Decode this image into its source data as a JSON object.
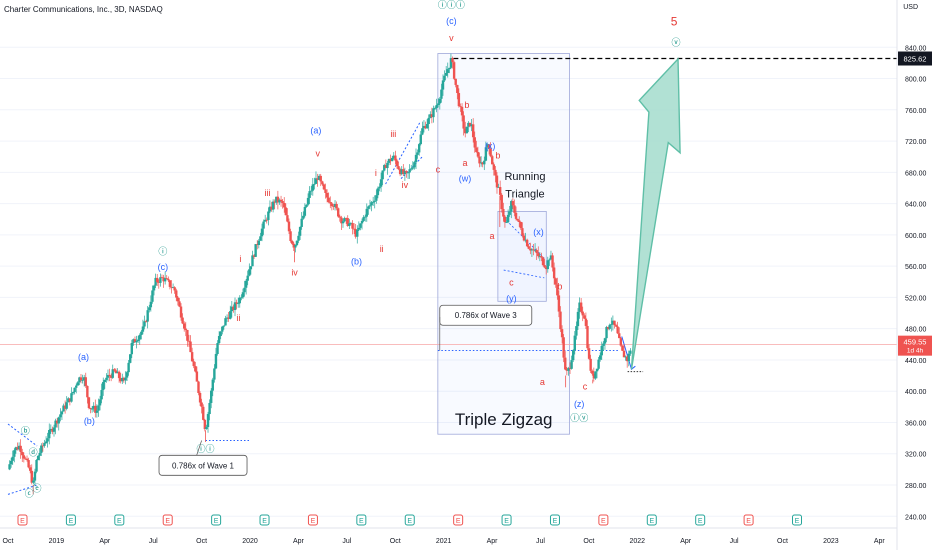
{
  "header": {
    "title": "Charter Communications, Inc., 3D, NASDAQ",
    "currency": "USD"
  },
  "colors": {
    "up": "#26a69a",
    "down": "#ef5350",
    "wave_blue": "#2962ff",
    "wave_red": "#e53935",
    "wave_teal": "#00897b",
    "target_arrow": "#a3dccd",
    "price_line": "#f7a6a6",
    "axis_text": "#131722"
  },
  "chart_data": {
    "type": "candlestick",
    "y_axis": {
      "ticks": [
        240,
        280,
        320,
        360,
        400,
        440,
        480,
        520,
        560,
        600,
        640,
        680,
        720,
        760,
        800,
        840
      ],
      "range": [
        225,
        880
      ]
    },
    "x_axis": {
      "ticks": [
        "Oct",
        "2019",
        "Apr",
        "Jul",
        "Oct",
        "2020",
        "Apr",
        "Jul",
        "Oct",
        "2021",
        "Apr",
        "Jul",
        "Oct",
        "2022",
        "Apr",
        "Jul",
        "Oct",
        "2023",
        "Apr"
      ]
    },
    "price_labels": {
      "high": "825.62",
      "last": "459.55",
      "last_sub": "1d 4h"
    },
    "price_path": [
      [
        0,
        300
      ],
      [
        0.03,
        325
      ],
      [
        0.06,
        330
      ],
      [
        0.09,
        312
      ],
      [
        0.11,
        300
      ],
      [
        0.13,
        280
      ],
      [
        0.15,
        315
      ],
      [
        0.2,
        340
      ],
      [
        0.28,
        375
      ],
      [
        0.33,
        395
      ],
      [
        0.36,
        415
      ],
      [
        0.39,
        420
      ],
      [
        0.42,
        380
      ],
      [
        0.46,
        375
      ],
      [
        0.5,
        415
      ],
      [
        0.55,
        425
      ],
      [
        0.6,
        410
      ],
      [
        0.64,
        460
      ],
      [
        0.7,
        480
      ],
      [
        0.76,
        540
      ],
      [
        0.8,
        545
      ],
      [
        0.86,
        530
      ],
      [
        0.92,
        475
      ],
      [
        0.96,
        430
      ],
      [
        1.0,
        380
      ],
      [
        1.02,
        350
      ],
      [
        1.05,
        400
      ],
      [
        1.08,
        460
      ],
      [
        1.12,
        490
      ],
      [
        1.2,
        520
      ],
      [
        1.25,
        560
      ],
      [
        1.3,
        600
      ],
      [
        1.34,
        625
      ],
      [
        1.38,
        645
      ],
      [
        1.42,
        640
      ],
      [
        1.46,
        595
      ],
      [
        1.48,
        585
      ],
      [
        1.52,
        620
      ],
      [
        1.56,
        655
      ],
      [
        1.6,
        675
      ],
      [
        1.64,
        650
      ],
      [
        1.68,
        640
      ],
      [
        1.72,
        620
      ],
      [
        1.76,
        615
      ],
      [
        1.8,
        600
      ],
      [
        1.85,
        630
      ],
      [
        1.9,
        650
      ],
      [
        1.95,
        690
      ],
      [
        1.99,
        700
      ],
      [
        2.03,
        680
      ],
      [
        2.06,
        675
      ],
      [
        2.1,
        695
      ],
      [
        2.14,
        735
      ],
      [
        2.18,
        750
      ],
      [
        2.22,
        770
      ],
      [
        2.26,
        805
      ],
      [
        2.29,
        825
      ],
      [
        2.32,
        780
      ],
      [
        2.36,
        730
      ],
      [
        2.39,
        745
      ],
      [
        2.42,
        700
      ],
      [
        2.45,
        690
      ],
      [
        2.48,
        720
      ],
      [
        2.51,
        680
      ],
      [
        2.54,
        650
      ],
      [
        2.57,
        610
      ],
      [
        2.6,
        640
      ],
      [
        2.63,
        620
      ],
      [
        2.66,
        600
      ],
      [
        2.69,
        585
      ],
      [
        2.72,
        578
      ],
      [
        2.75,
        570
      ],
      [
        2.78,
        560
      ],
      [
        2.8,
        575
      ],
      [
        2.83,
        535
      ],
      [
        2.86,
        470
      ],
      [
        2.88,
        420
      ],
      [
        2.9,
        430
      ],
      [
        2.93,
        470
      ],
      [
        2.95,
        510
      ],
      [
        2.98,
        495
      ],
      [
        3.0,
        440
      ],
      [
        3.02,
        415
      ],
      [
        3.05,
        440
      ],
      [
        3.08,
        470
      ],
      [
        3.11,
        490
      ],
      [
        3.14,
        480
      ],
      [
        3.17,
        450
      ],
      [
        3.2,
        440
      ],
      [
        3.22,
        459.55
      ]
    ],
    "extra_lows": [
      [
        0.13,
        268
      ],
      [
        1.02,
        335
      ],
      [
        2.88,
        405
      ],
      [
        3.02,
        410
      ],
      [
        1.48,
        565
      ],
      [
        2.54,
        610
      ]
    ],
    "wave_labels": [
      {
        "text": "ⓑ",
        "x": 0.09,
        "price": 345,
        "color": "teal"
      },
      {
        "text": "ⓓ",
        "x": 0.13,
        "price": 318,
        "color": "teal"
      },
      {
        "text": "ⓒ",
        "x": 0.11,
        "price": 265,
        "color": "teal"
      },
      {
        "text": "ⓔ",
        "x": 0.15,
        "price": 272,
        "color": "teal"
      },
      {
        "text": "(a)",
        "x": 0.39,
        "price": 440,
        "color": "blue"
      },
      {
        "text": "(b)",
        "x": 0.42,
        "price": 358,
        "color": "blue"
      },
      {
        "text": "ⓘ",
        "x": 0.8,
        "price": 575,
        "color": "teal"
      },
      {
        "text": "(c)",
        "x": 0.8,
        "price": 555,
        "color": "blue"
      },
      {
        "text": "ⓘⓘ",
        "x": 1.02,
        "price": 322,
        "color": "teal"
      },
      {
        "text": "i",
        "x": 1.2,
        "price": 565,
        "color": "red"
      },
      {
        "text": "ii",
        "x": 1.19,
        "price": 490,
        "color": "red"
      },
      {
        "text": "iii",
        "x": 1.34,
        "price": 650,
        "color": "red"
      },
      {
        "text": "iv",
        "x": 1.48,
        "price": 548,
        "color": "red"
      },
      {
        "text": "v",
        "x": 1.6,
        "price": 700,
        "color": "red"
      },
      {
        "text": "(a)",
        "x": 1.59,
        "price": 730,
        "color": "blue"
      },
      {
        "text": "(b)",
        "x": 1.8,
        "price": 562,
        "color": "blue"
      },
      {
        "text": "i",
        "x": 1.9,
        "price": 675,
        "color": "red"
      },
      {
        "text": "ii",
        "x": 1.93,
        "price": 578,
        "color": "red"
      },
      {
        "text": "iii",
        "x": 1.99,
        "price": 725,
        "color": "red"
      },
      {
        "text": "iv",
        "x": 2.05,
        "price": 660,
        "color": "red"
      },
      {
        "text": "ⓘⓘⓘ",
        "x": 2.29,
        "price": 890,
        "color": "teal"
      },
      {
        "text": "(c)",
        "x": 2.29,
        "price": 870,
        "color": "blue"
      },
      {
        "text": "v",
        "x": 2.29,
        "price": 848,
        "color": "red"
      },
      {
        "text": "c",
        "x": 2.22,
        "price": 680,
        "color": "red"
      },
      {
        "text": "b",
        "x": 2.37,
        "price": 762,
        "color": "red"
      },
      {
        "text": "a",
        "x": 2.36,
        "price": 688,
        "color": "red"
      },
      {
        "text": "(w)",
        "x": 2.36,
        "price": 668,
        "color": "blue"
      },
      {
        "text": "(x)",
        "x": 2.49,
        "price": 710,
        "color": "blue"
      },
      {
        "text": "b",
        "x": 2.53,
        "price": 698,
        "color": "red"
      },
      {
        "text": "a",
        "x": 2.5,
        "price": 595,
        "color": "red"
      },
      {
        "text": "c",
        "x": 2.6,
        "price": 535,
        "color": "red"
      },
      {
        "text": "(y)",
        "x": 2.6,
        "price": 515,
        "color": "blue"
      },
      {
        "text": "(x)",
        "x": 2.74,
        "price": 600,
        "color": "blue"
      },
      {
        "text": "b",
        "x": 2.85,
        "price": 530,
        "color": "red"
      },
      {
        "text": "a",
        "x": 2.76,
        "price": 408,
        "color": "red"
      },
      {
        "text": "c",
        "x": 2.98,
        "price": 402,
        "color": "red"
      },
      {
        "text": "(z)",
        "x": 2.95,
        "price": 380,
        "color": "blue"
      },
      {
        "text": "ⓘⓥ",
        "x": 2.95,
        "price": 362,
        "color": "teal"
      },
      {
        "text": "5",
        "x": 3.44,
        "price": 868,
        "color": "red"
      },
      {
        "text": "ⓥ",
        "x": 3.45,
        "price": 842,
        "color": "teal"
      }
    ],
    "annotations": {
      "wave1_note": "0.786x of Wave 1",
      "wave3_note": "0.786x of Wave 3",
      "running_triangle_l1": "Running",
      "running_triangle_l2": "Triangle",
      "triple_zigzag": "Triple Zigzag"
    }
  }
}
